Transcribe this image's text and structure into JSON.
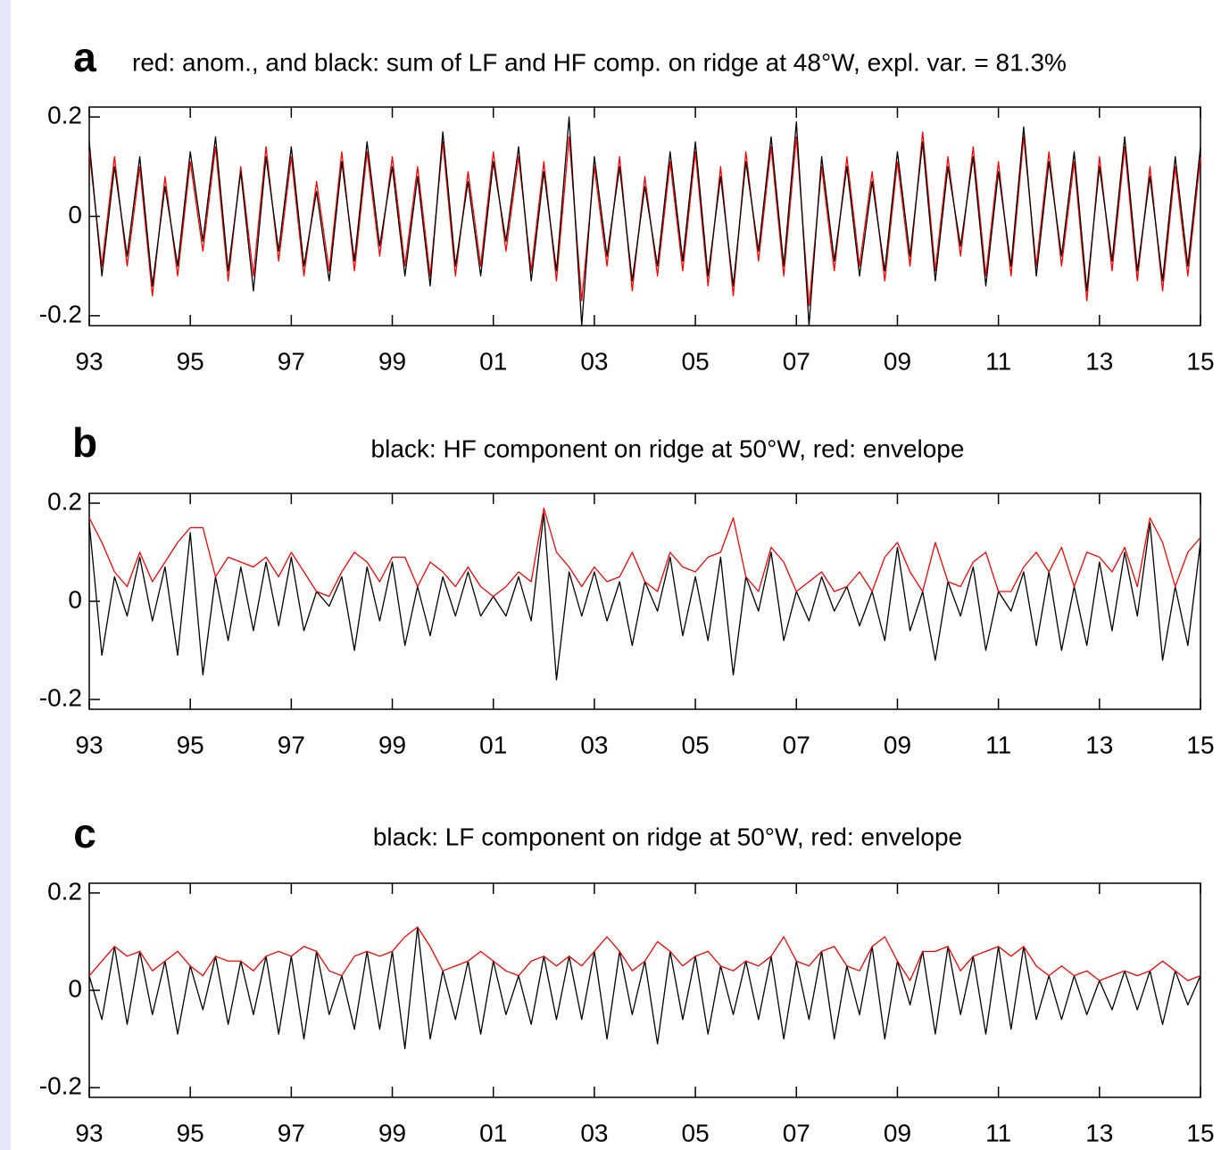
{
  "chart_data": [
    {
      "type": "line",
      "label": "a",
      "title": "red: anom., and black: sum of LF and HF comp. on ridge at 48°W, expl. var. = 81.3%",
      "x": [
        1993,
        1993.25,
        1993.5,
        1993.75,
        1994,
        1994.25,
        1994.5,
        1994.75,
        1995,
        1995.25,
        1995.5,
        1995.75,
        1996,
        1996.25,
        1996.5,
        1996.75,
        1997,
        1997.25,
        1997.5,
        1997.75,
        1998,
        1998.25,
        1998.5,
        1998.75,
        1999,
        1999.25,
        1999.5,
        1999.75,
        2000,
        2000.25,
        2000.5,
        2000.75,
        2001,
        2001.25,
        2001.5,
        2001.75,
        2002,
        2002.25,
        2002.5,
        2002.75,
        2003,
        2003.25,
        2003.5,
        2003.75,
        2004,
        2004.25,
        2004.5,
        2004.75,
        2005,
        2005.25,
        2005.5,
        2005.75,
        2006,
        2006.25,
        2006.5,
        2006.75,
        2007,
        2007.25,
        2007.5,
        2007.75,
        2008,
        2008.25,
        2008.5,
        2008.75,
        2009,
        2009.25,
        2009.5,
        2009.75,
        2010,
        2010.25,
        2010.5,
        2010.75,
        2011,
        2011.25,
        2011.5,
        2011.75,
        2012,
        2012.25,
        2012.5,
        2012.75,
        2013,
        2013.25,
        2013.5,
        2013.75,
        2014,
        2014.25,
        2014.5,
        2014.75,
        2015
      ],
      "series": [
        {
          "color": "#ff0000",
          "values": [
            0.13,
            -0.1,
            0.12,
            -0.1,
            0.1,
            -0.16,
            0.08,
            -0.12,
            0.11,
            -0.07,
            0.14,
            -0.13,
            0.1,
            -0.12,
            0.14,
            -0.09,
            0.12,
            -0.12,
            0.07,
            -0.11,
            0.13,
            -0.11,
            0.13,
            -0.08,
            0.12,
            -0.1,
            0.1,
            -0.12,
            0.15,
            -0.12,
            0.09,
            -0.1,
            0.13,
            -0.07,
            0.12,
            -0.11,
            0.11,
            -0.13,
            0.16,
            -0.17,
            0.1,
            -0.1,
            0.12,
            -0.15,
            0.08,
            -0.12,
            0.11,
            -0.11,
            0.13,
            -0.14,
            0.1,
            -0.16,
            0.13,
            -0.09,
            0.14,
            -0.12,
            0.16,
            -0.18,
            0.1,
            -0.11,
            0.12,
            -0.1,
            0.09,
            -0.13,
            0.11,
            -0.1,
            0.17,
            -0.11,
            0.12,
            -0.08,
            0.14,
            -0.12,
            0.11,
            -0.12,
            0.16,
            -0.1,
            0.13,
            -0.1,
            0.11,
            -0.17,
            0.12,
            -0.11,
            0.14,
            -0.13,
            0.1,
            -0.15,
            0.1,
            -0.12,
            0.12
          ]
        },
        {
          "color": "#000000",
          "values": [
            0.15,
            -0.12,
            0.1,
            -0.08,
            0.12,
            -0.14,
            0.06,
            -0.1,
            0.13,
            -0.05,
            0.16,
            -0.11,
            0.09,
            -0.15,
            0.12,
            -0.07,
            0.14,
            -0.1,
            0.05,
            -0.13,
            0.11,
            -0.09,
            0.15,
            -0.06,
            0.1,
            -0.12,
            0.08,
            -0.14,
            0.17,
            -0.1,
            0.07,
            -0.12,
            0.11,
            -0.05,
            0.14,
            -0.13,
            0.09,
            -0.11,
            0.2,
            -0.22,
            0.12,
            -0.08,
            0.1,
            -0.13,
            0.06,
            -0.1,
            0.13,
            -0.09,
            0.15,
            -0.12,
            0.08,
            -0.14,
            0.11,
            -0.07,
            0.16,
            -0.1,
            0.19,
            -0.22,
            0.12,
            -0.09,
            0.1,
            -0.12,
            0.07,
            -0.11,
            0.13,
            -0.08,
            0.15,
            -0.13,
            0.1,
            -0.06,
            0.12,
            -0.14,
            0.09,
            -0.1,
            0.18,
            -0.12,
            0.11,
            -0.08,
            0.13,
            -0.15,
            0.1,
            -0.09,
            0.16,
            -0.11,
            0.08,
            -0.13,
            0.12,
            -0.1,
            0.14
          ]
        }
      ],
      "xlim": [
        1993,
        2015
      ],
      "ylim": [
        -0.22,
        0.22
      ],
      "yticks": [
        -0.2,
        0,
        0.2
      ],
      "xticks": [
        {
          "value": 1993,
          "label": "93"
        },
        {
          "value": 1995,
          "label": "95"
        },
        {
          "value": 1997,
          "label": "97"
        },
        {
          "value": 1999,
          "label": "99"
        },
        {
          "value": 2001,
          "label": "01"
        },
        {
          "value": 2003,
          "label": "03"
        },
        {
          "value": 2005,
          "label": "05"
        },
        {
          "value": 2007,
          "label": "07"
        },
        {
          "value": 2009,
          "label": "09"
        },
        {
          "value": 2011,
          "label": "11"
        },
        {
          "value": 2013,
          "label": "13"
        },
        {
          "value": 2015,
          "label": "15"
        }
      ]
    },
    {
      "type": "line",
      "label": "b",
      "title": "black: HF component on ridge at 50°W, red: envelope",
      "x": [
        1993,
        1993.25,
        1993.5,
        1993.75,
        1994,
        1994.25,
        1994.5,
        1994.75,
        1995,
        1995.25,
        1995.5,
        1995.75,
        1996,
        1996.25,
        1996.5,
        1996.75,
        1997,
        1997.25,
        1997.5,
        1997.75,
        1998,
        1998.25,
        1998.5,
        1998.75,
        1999,
        1999.25,
        1999.5,
        1999.75,
        2000,
        2000.25,
        2000.5,
        2000.75,
        2001,
        2001.25,
        2001.5,
        2001.75,
        2002,
        2002.25,
        2002.5,
        2002.75,
        2003,
        2003.25,
        2003.5,
        2003.75,
        2004,
        2004.25,
        2004.5,
        2004.75,
        2005,
        2005.25,
        2005.5,
        2005.75,
        2006,
        2006.25,
        2006.5,
        2006.75,
        2007,
        2007.25,
        2007.5,
        2007.75,
        2008,
        2008.25,
        2008.5,
        2008.75,
        2009,
        2009.25,
        2009.5,
        2009.75,
        2010,
        2010.25,
        2010.5,
        2010.75,
        2011,
        2011.25,
        2011.5,
        2011.75,
        2012,
        2012.25,
        2012.5,
        2012.75,
        2013,
        2013.25,
        2013.5,
        2013.75,
        2014,
        2014.25,
        2014.5,
        2014.75,
        2015
      ],
      "series": [
        {
          "color": "#000000",
          "values": [
            0.16,
            -0.11,
            0.05,
            -0.03,
            0.09,
            -0.04,
            0.07,
            -0.11,
            0.14,
            -0.15,
            0.05,
            -0.08,
            0.07,
            -0.06,
            0.08,
            -0.05,
            0.09,
            -0.06,
            0.02,
            -0.01,
            0.05,
            -0.1,
            0.07,
            -0.04,
            0.08,
            -0.09,
            0.03,
            -0.07,
            0.05,
            -0.03,
            0.06,
            -0.03,
            0.01,
            -0.03,
            0.05,
            -0.04,
            0.18,
            -0.16,
            0.06,
            -0.03,
            0.06,
            -0.04,
            0.04,
            -0.09,
            0.04,
            -0.02,
            0.09,
            -0.07,
            0.05,
            -0.08,
            0.09,
            -0.15,
            0.05,
            -0.02,
            0.1,
            -0.08,
            0.02,
            -0.04,
            0.05,
            -0.02,
            0.03,
            -0.05,
            0.02,
            -0.08,
            0.11,
            -0.06,
            0.02,
            -0.12,
            0.04,
            -0.03,
            0.07,
            -0.1,
            0.02,
            -0.02,
            0.06,
            -0.09,
            0.06,
            -0.1,
            0.03,
            -0.09,
            0.08,
            -0.06,
            0.1,
            -0.03,
            0.16,
            -0.12,
            0.03,
            -0.09,
            0.12
          ]
        },
        {
          "color": "#ff0000",
          "values": [
            0.17,
            0.12,
            0.06,
            0.03,
            0.1,
            0.04,
            0.08,
            0.12,
            0.15,
            0.15,
            0.05,
            0.09,
            0.08,
            0.07,
            0.09,
            0.05,
            0.1,
            0.06,
            0.02,
            0.01,
            0.06,
            0.1,
            0.08,
            0.04,
            0.09,
            0.09,
            0.03,
            0.08,
            0.06,
            0.03,
            0.07,
            0.03,
            0.01,
            0.03,
            0.06,
            0.04,
            0.19,
            0.1,
            0.07,
            0.03,
            0.07,
            0.04,
            0.05,
            0.1,
            0.04,
            0.02,
            0.1,
            0.07,
            0.06,
            0.09,
            0.1,
            0.17,
            0.05,
            0.02,
            0.11,
            0.08,
            0.02,
            0.04,
            0.06,
            0.02,
            0.03,
            0.06,
            0.02,
            0.09,
            0.12,
            0.06,
            0.02,
            0.12,
            0.04,
            0.03,
            0.08,
            0.1,
            0.02,
            0.02,
            0.07,
            0.1,
            0.06,
            0.11,
            0.03,
            0.1,
            0.09,
            0.06,
            0.11,
            0.03,
            0.17,
            0.12,
            0.03,
            0.1,
            0.13
          ]
        }
      ],
      "xlim": [
        1993,
        2015
      ],
      "ylim": [
        -0.22,
        0.22
      ],
      "yticks": [
        -0.2,
        0,
        0.2
      ],
      "xticks": [
        {
          "value": 1993,
          "label": "93"
        },
        {
          "value": 1995,
          "label": "95"
        },
        {
          "value": 1997,
          "label": "97"
        },
        {
          "value": 1999,
          "label": "99"
        },
        {
          "value": 2001,
          "label": "01"
        },
        {
          "value": 2003,
          "label": "03"
        },
        {
          "value": 2005,
          "label": "05"
        },
        {
          "value": 2007,
          "label": "07"
        },
        {
          "value": 2009,
          "label": "09"
        },
        {
          "value": 2011,
          "label": "11"
        },
        {
          "value": 2013,
          "label": "13"
        },
        {
          "value": 2015,
          "label": "15"
        }
      ]
    },
    {
      "type": "line",
      "label": "c",
      "title": "black: LF component on ridge at 50°W, red: envelope",
      "x": [
        1993,
        1993.25,
        1993.5,
        1993.75,
        1994,
        1994.25,
        1994.5,
        1994.75,
        1995,
        1995.25,
        1995.5,
        1995.75,
        1996,
        1996.25,
        1996.5,
        1996.75,
        1997,
        1997.25,
        1997.5,
        1997.75,
        1998,
        1998.25,
        1998.5,
        1998.75,
        1999,
        1999.25,
        1999.5,
        1999.75,
        2000,
        2000.25,
        2000.5,
        2000.75,
        2001,
        2001.25,
        2001.5,
        2001.75,
        2002,
        2002.25,
        2002.5,
        2002.75,
        2003,
        2003.25,
        2003.5,
        2003.75,
        2004,
        2004.25,
        2004.5,
        2004.75,
        2005,
        2005.25,
        2005.5,
        2005.75,
        2006,
        2006.25,
        2006.5,
        2006.75,
        2007,
        2007.25,
        2007.5,
        2007.75,
        2008,
        2008.25,
        2008.5,
        2008.75,
        2009,
        2009.25,
        2009.5,
        2009.75,
        2010,
        2010.25,
        2010.5,
        2010.75,
        2011,
        2011.25,
        2011.5,
        2011.75,
        2012,
        2012.25,
        2012.5,
        2012.75,
        2013,
        2013.25,
        2013.5,
        2013.75,
        2014,
        2014.25,
        2014.5,
        2014.75,
        2015
      ],
      "series": [
        {
          "color": "#000000",
          "values": [
            0.03,
            -0.06,
            0.09,
            -0.07,
            0.08,
            -0.05,
            0.06,
            -0.09,
            0.05,
            -0.04,
            0.07,
            -0.07,
            0.06,
            -0.05,
            0.07,
            -0.09,
            0.07,
            -0.1,
            0.08,
            -0.05,
            0.03,
            -0.08,
            0.08,
            -0.08,
            0.08,
            -0.12,
            0.13,
            -0.1,
            0.04,
            -0.06,
            0.06,
            -0.09,
            0.06,
            -0.05,
            0.03,
            -0.07,
            0.07,
            -0.06,
            0.07,
            -0.06,
            0.08,
            -0.1,
            0.08,
            -0.05,
            0.06,
            -0.11,
            0.08,
            -0.06,
            0.07,
            -0.09,
            0.05,
            -0.05,
            0.06,
            -0.06,
            0.07,
            -0.1,
            0.06,
            -0.06,
            0.08,
            -0.1,
            0.05,
            -0.05,
            0.09,
            -0.1,
            0.06,
            -0.03,
            0.08,
            -0.09,
            0.09,
            -0.05,
            0.07,
            -0.09,
            0.09,
            -0.08,
            0.09,
            -0.06,
            0.03,
            -0.06,
            0.03,
            -0.05,
            0.02,
            -0.04,
            0.04,
            -0.04,
            0.04,
            -0.07,
            0.04,
            -0.03,
            0.03
          ]
        },
        {
          "color": "#ff0000",
          "values": [
            0.03,
            0.06,
            0.09,
            0.07,
            0.08,
            0.04,
            0.06,
            0.08,
            0.05,
            0.03,
            0.07,
            0.06,
            0.06,
            0.04,
            0.07,
            0.08,
            0.07,
            0.09,
            0.08,
            0.04,
            0.03,
            0.07,
            0.08,
            0.07,
            0.08,
            0.11,
            0.13,
            0.09,
            0.04,
            0.05,
            0.06,
            0.08,
            0.06,
            0.04,
            0.03,
            0.06,
            0.07,
            0.05,
            0.07,
            0.05,
            0.08,
            0.11,
            0.08,
            0.04,
            0.06,
            0.1,
            0.08,
            0.05,
            0.07,
            0.08,
            0.05,
            0.04,
            0.06,
            0.05,
            0.07,
            0.11,
            0.06,
            0.05,
            0.08,
            0.09,
            0.05,
            0.04,
            0.09,
            0.11,
            0.06,
            0.02,
            0.08,
            0.08,
            0.09,
            0.04,
            0.07,
            0.08,
            0.09,
            0.07,
            0.09,
            0.05,
            0.03,
            0.05,
            0.03,
            0.04,
            0.02,
            0.03,
            0.04,
            0.03,
            0.04,
            0.06,
            0.04,
            0.02,
            0.03
          ]
        }
      ],
      "xlim": [
        1993,
        2015
      ],
      "ylim": [
        -0.22,
        0.22
      ],
      "yticks": [
        -0.2,
        0,
        0.2
      ],
      "xticks": [
        {
          "value": 1993,
          "label": "93"
        },
        {
          "value": 1995,
          "label": "95"
        },
        {
          "value": 1997,
          "label": "97"
        },
        {
          "value": 1999,
          "label": "99"
        },
        {
          "value": 2001,
          "label": "01"
        },
        {
          "value": 2003,
          "label": "03"
        },
        {
          "value": 2005,
          "label": "05"
        },
        {
          "value": 2007,
          "label": "07"
        },
        {
          "value": 2009,
          "label": "09"
        },
        {
          "value": 2011,
          "label": "11"
        },
        {
          "value": 2013,
          "label": "13"
        },
        {
          "value": 2015,
          "label": "15"
        }
      ]
    }
  ]
}
